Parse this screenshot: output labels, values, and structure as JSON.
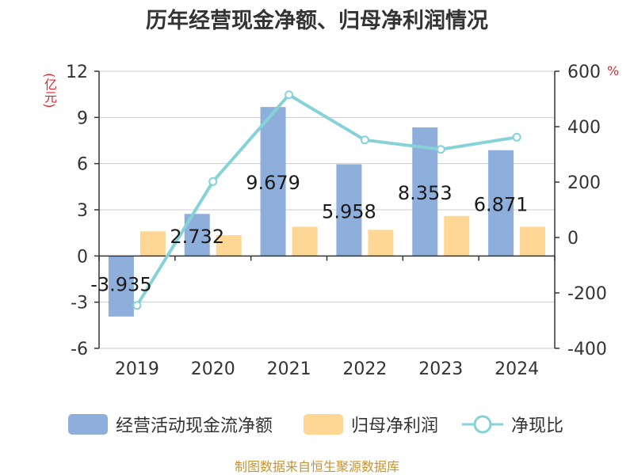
{
  "title": "历年经营现金净额、归母净利润情况",
  "left_unit": "(亿元)",
  "right_unit": "%",
  "source": "制图数据来自恒生聚源数据库",
  "colors": {
    "bar1": "#8eaedb",
    "bar2": "#fdd793",
    "line": "#86d3d7",
    "axis": "#333333",
    "grid": "#cccccc",
    "unit": "#e8232b"
  },
  "chart_data": {
    "type": "bar",
    "categories": [
      "2019",
      "2020",
      "2021",
      "2022",
      "2023",
      "2024"
    ],
    "series": [
      {
        "name": "经营活动现金流净额",
        "axis": "left",
        "type": "bar",
        "values": [
          -3.935,
          2.732,
          9.679,
          5.958,
          8.353,
          6.871
        ]
      },
      {
        "name": "归母净利润",
        "axis": "left",
        "type": "bar",
        "values": [
          1.6,
          1.35,
          1.9,
          1.7,
          2.6,
          1.9
        ]
      },
      {
        "name": "净现比",
        "axis": "right",
        "type": "line",
        "values": [
          -245,
          202,
          515,
          352,
          318,
          362
        ]
      }
    ],
    "data_labels": [
      "-3.935",
      "2.732",
      "9.679",
      "5.958",
      "8.353",
      "6.871"
    ],
    "left_axis": {
      "ylim": [
        -6,
        12
      ],
      "ticks": [
        "-6",
        "-3",
        "0",
        "3",
        "6",
        "9",
        "12"
      ]
    },
    "right_axis": {
      "ylim": [
        -400,
        600
      ],
      "ticks": [
        "-400",
        "-200",
        "0",
        "200",
        "400",
        "600"
      ]
    },
    "grid": true,
    "legend_position": "bottom"
  }
}
